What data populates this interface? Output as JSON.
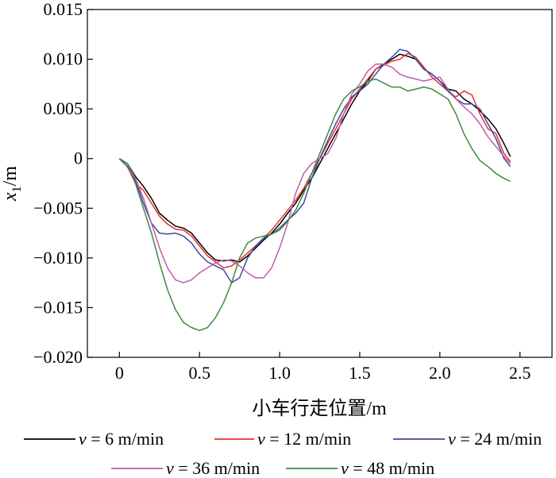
{
  "chart_data": {
    "type": "line",
    "title": "",
    "xlabel": "小车行走位置/m",
    "ylabel_var": "x",
    "ylabel_sub": "1",
    "ylabel_unit": "/m",
    "xlim": [
      -0.2,
      2.7
    ],
    "ylim": [
      -0.02,
      0.015
    ],
    "xticks": [
      0,
      0.5,
      1.0,
      1.5,
      2.0,
      2.5
    ],
    "xtick_labels": [
      "0",
      "0.5",
      "1.0",
      "1.5",
      "2.0",
      "2.5"
    ],
    "yticks": [
      0.015,
      0.01,
      0.005,
      0,
      -0.005,
      -0.01,
      -0.015,
      -0.02
    ],
    "ytick_labels": [
      "0.015",
      "0.010",
      "0.005",
      "0",
      "−0.005",
      "−0.010",
      "−0.015",
      "−0.020"
    ],
    "grid": false,
    "legend_position": "bottom",
    "series": [
      {
        "name": "v = 6 m/min",
        "var": "v",
        "text": " = 6 m/min",
        "color": "#000000",
        "x": [
          0,
          0.05,
          0.1,
          0.15,
          0.2,
          0.25,
          0.3,
          0.35,
          0.4,
          0.45,
          0.5,
          0.55,
          0.6,
          0.65,
          0.7,
          0.75,
          0.8,
          0.85,
          0.9,
          0.95,
          1.0,
          1.05,
          1.1,
          1.15,
          1.2,
          1.25,
          1.3,
          1.35,
          1.4,
          1.45,
          1.5,
          1.55,
          1.6,
          1.65,
          1.7,
          1.75,
          1.8,
          1.85,
          1.9,
          1.95,
          2.0,
          2.05,
          2.1,
          2.15,
          2.2,
          2.25,
          2.3,
          2.35,
          2.4,
          2.44
        ],
        "y": [
          0,
          -0.0005,
          -0.0018,
          -0.0028,
          -0.004,
          -0.0055,
          -0.0062,
          -0.0068,
          -0.007,
          -0.0075,
          -0.0085,
          -0.0095,
          -0.0102,
          -0.0103,
          -0.0102,
          -0.0104,
          -0.0098,
          -0.009,
          -0.0082,
          -0.0075,
          -0.0066,
          -0.0055,
          -0.0045,
          -0.0032,
          -0.002,
          -0.0005,
          0.001,
          0.0025,
          0.004,
          0.0055,
          0.0068,
          0.0078,
          0.009,
          0.0095,
          0.01,
          0.0105,
          0.0103,
          0.01,
          0.009,
          0.0085,
          0.0078,
          0.007,
          0.0068,
          0.006,
          0.0055,
          0.0048,
          0.004,
          0.003,
          0.0015,
          0.0002
        ]
      },
      {
        "name": "v = 12 m/min",
        "var": "v",
        "text": " = 12 m/min",
        "color": "#e8322b",
        "x": [
          0,
          0.05,
          0.1,
          0.15,
          0.2,
          0.25,
          0.3,
          0.35,
          0.4,
          0.45,
          0.5,
          0.55,
          0.6,
          0.65,
          0.7,
          0.75,
          0.8,
          0.85,
          0.9,
          0.95,
          1.0,
          1.05,
          1.1,
          1.15,
          1.2,
          1.25,
          1.3,
          1.35,
          1.4,
          1.45,
          1.5,
          1.55,
          1.6,
          1.65,
          1.7,
          1.75,
          1.8,
          1.85,
          1.9,
          1.95,
          2.0,
          2.05,
          2.1,
          2.15,
          2.2,
          2.25,
          2.3,
          2.35,
          2.4,
          2.44
        ],
        "y": [
          0,
          -0.0008,
          -0.0025,
          -0.0032,
          -0.0045,
          -0.0058,
          -0.0066,
          -0.0071,
          -0.0072,
          -0.0078,
          -0.0088,
          -0.0098,
          -0.0104,
          -0.011,
          -0.0108,
          -0.0102,
          -0.0095,
          -0.0088,
          -0.008,
          -0.0072,
          -0.0062,
          -0.0052,
          -0.0042,
          -0.003,
          -0.0015,
          0,
          0.0015,
          0.003,
          0.0045,
          0.006,
          0.007,
          0.008,
          0.009,
          0.0094,
          0.0098,
          0.01,
          0.0106,
          0.0102,
          0.0092,
          0.0082,
          0.0075,
          0.0068,
          0.0062,
          0.0068,
          0.0064,
          0.0045,
          0.003,
          0.0025,
          0.0005,
          -0.0003
        ]
      },
      {
        "name": "v = 24 m/min",
        "var": "v",
        "text": " = 24 m/min",
        "color": "#3c4a9e",
        "x": [
          0,
          0.05,
          0.1,
          0.15,
          0.2,
          0.25,
          0.3,
          0.35,
          0.4,
          0.45,
          0.5,
          0.55,
          0.6,
          0.65,
          0.7,
          0.75,
          0.8,
          0.85,
          0.9,
          0.95,
          1.0,
          1.05,
          1.1,
          1.15,
          1.2,
          1.25,
          1.3,
          1.35,
          1.4,
          1.45,
          1.5,
          1.55,
          1.6,
          1.65,
          1.7,
          1.75,
          1.8,
          1.85,
          1.9,
          1.95,
          2.0,
          2.05,
          2.1,
          2.15,
          2.2,
          2.25,
          2.3,
          2.35,
          2.4,
          2.44
        ],
        "y": [
          0,
          -0.0008,
          -0.0022,
          -0.0045,
          -0.0065,
          -0.0075,
          -0.0076,
          -0.0075,
          -0.0078,
          -0.0085,
          -0.0096,
          -0.0104,
          -0.0108,
          -0.0112,
          -0.0125,
          -0.012,
          -0.01,
          -0.0088,
          -0.008,
          -0.0076,
          -0.007,
          -0.0062,
          -0.0055,
          -0.0045,
          -0.002,
          0,
          0.0018,
          0.0035,
          0.005,
          0.0062,
          0.0068,
          0.0075,
          0.0085,
          0.0095,
          0.0102,
          0.011,
          0.0108,
          0.01,
          0.009,
          0.0085,
          0.0078,
          0.0068,
          0.006,
          0.0055,
          0.0055,
          0.005,
          0.0035,
          0.002,
          0,
          -0.0008
        ]
      },
      {
        "name": "v = 36 m/min",
        "var": "v",
        "text": " = 36 m/min",
        "color": "#c05cab",
        "x": [
          0,
          0.05,
          0.1,
          0.15,
          0.2,
          0.25,
          0.3,
          0.35,
          0.4,
          0.45,
          0.5,
          0.55,
          0.6,
          0.65,
          0.7,
          0.75,
          0.8,
          0.85,
          0.9,
          0.95,
          1.0,
          1.05,
          1.1,
          1.15,
          1.2,
          1.25,
          1.3,
          1.35,
          1.4,
          1.45,
          1.5,
          1.55,
          1.6,
          1.65,
          1.7,
          1.75,
          1.8,
          1.85,
          1.9,
          1.95,
          2.0,
          2.05,
          2.1,
          2.15,
          2.2,
          2.25,
          2.3,
          2.35,
          2.4,
          2.44
        ],
        "y": [
          0,
          -0.0005,
          -0.002,
          -0.004,
          -0.0065,
          -0.009,
          -0.011,
          -0.0122,
          -0.0125,
          -0.0122,
          -0.0115,
          -0.011,
          -0.0105,
          -0.0102,
          -0.0103,
          -0.0108,
          -0.0115,
          -0.012,
          -0.012,
          -0.011,
          -0.009,
          -0.0065,
          -0.0035,
          -0.0015,
          -0.0005,
          0,
          0.0005,
          0.002,
          0.0045,
          0.0065,
          0.0075,
          0.0088,
          0.0095,
          0.0095,
          0.0092,
          0.0085,
          0.0082,
          0.008,
          0.0078,
          0.008,
          0.0082,
          0.007,
          0.006,
          0.0052,
          0.0045,
          0.0035,
          0.0022,
          0.0012,
          0.0002,
          -0.0005
        ]
      },
      {
        "name": "v = 48 m/min",
        "var": "v",
        "text": " = 48 m/min",
        "color": "#3f8a3c",
        "x": [
          0,
          0.05,
          0.1,
          0.15,
          0.2,
          0.25,
          0.3,
          0.35,
          0.4,
          0.45,
          0.5,
          0.55,
          0.6,
          0.65,
          0.7,
          0.75,
          0.8,
          0.85,
          0.9,
          0.95,
          1.0,
          1.05,
          1.1,
          1.15,
          1.2,
          1.25,
          1.3,
          1.35,
          1.4,
          1.45,
          1.5,
          1.55,
          1.6,
          1.65,
          1.7,
          1.75,
          1.8,
          1.85,
          1.9,
          1.95,
          2.0,
          2.05,
          2.1,
          2.15,
          2.2,
          2.25,
          2.3,
          2.35,
          2.4,
          2.44
        ],
        "y": [
          0,
          -0.0005,
          -0.0025,
          -0.005,
          -0.0075,
          -0.0105,
          -0.0132,
          -0.0152,
          -0.0165,
          -0.017,
          -0.0173,
          -0.017,
          -0.016,
          -0.0145,
          -0.0125,
          -0.01,
          -0.0085,
          -0.008,
          -0.0078,
          -0.0076,
          -0.0072,
          -0.0063,
          -0.0052,
          -0.0035,
          -0.0015,
          0.0005,
          0.0025,
          0.0045,
          0.006,
          0.0068,
          0.0072,
          0.0078,
          0.008,
          0.0076,
          0.0072,
          0.0072,
          0.0068,
          0.007,
          0.0072,
          0.007,
          0.0065,
          0.006,
          0.0045,
          0.0025,
          0.001,
          -0.0002,
          -0.0008,
          -0.0015,
          -0.002,
          -0.0023
        ]
      }
    ]
  }
}
